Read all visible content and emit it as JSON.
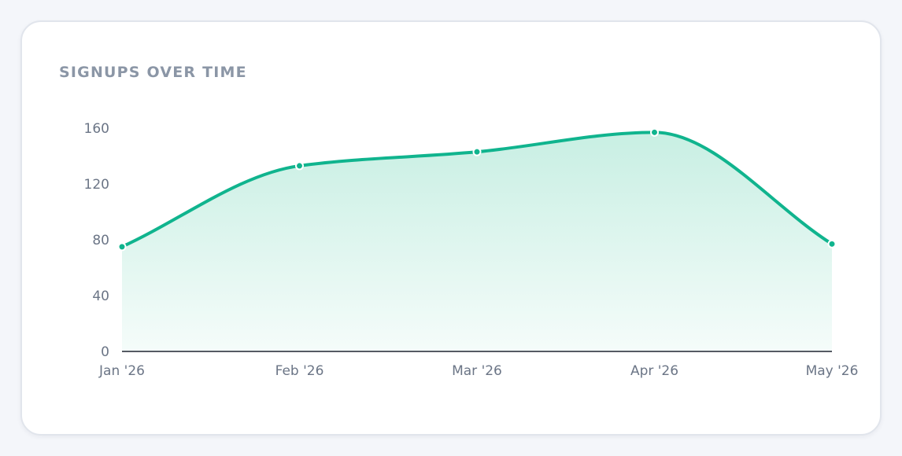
{
  "card": {
    "title": "SIGNUPS OVER TIME"
  },
  "colors": {
    "page_background": "#f4f6fa",
    "card_background": "#ffffff",
    "card_border": "#e1e5ec",
    "title_text": "#8b96a6",
    "tick_text": "#6b7586",
    "line": "#10b48e",
    "area_top": "#c8efe3",
    "area_bottom": "#f5fcfa",
    "axis": "#1e2530"
  },
  "chart_data": {
    "type": "area",
    "title": "SIGNUPS OVER TIME",
    "xlabel": "",
    "ylabel": "",
    "categories": [
      "Jan '26",
      "Feb '26",
      "Mar '26",
      "Apr '26",
      "May '26"
    ],
    "series": [
      {
        "values": [
          75,
          133,
          143,
          157,
          77
        ]
      }
    ],
    "yticks": [
      0,
      40,
      80,
      120,
      160
    ],
    "ylim": [
      0,
      160
    ],
    "curve": "smooth",
    "markers": true,
    "grid": false,
    "legend": "none"
  }
}
